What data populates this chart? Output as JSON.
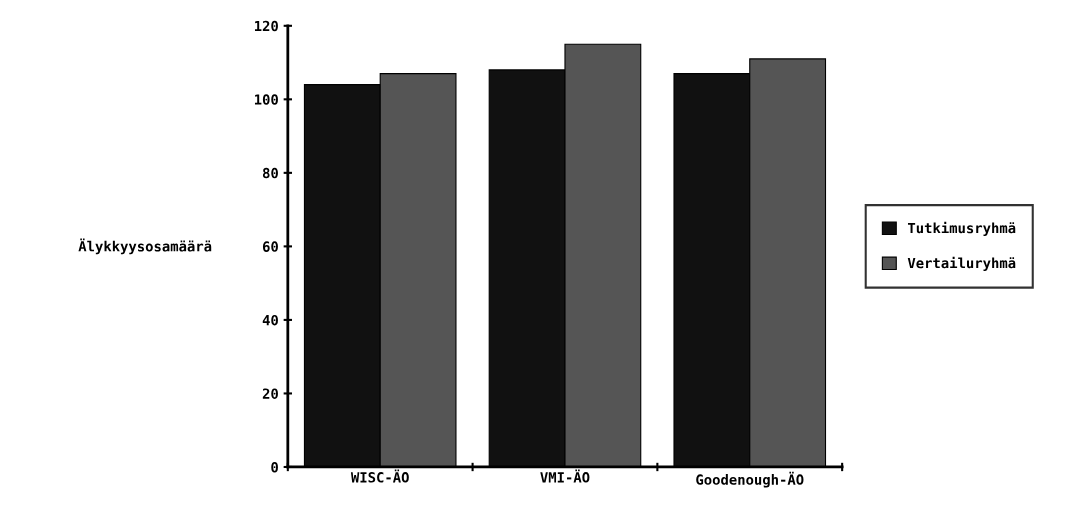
{
  "chart_data": {
    "type": "bar",
    "ylabel": "Älykkyysosamäärä",
    "categories": [
      "WISC-ÄO",
      "VMI-ÄO",
      "Goodenough-ÄO"
    ],
    "series": [
      {
        "name": "Tutkimusryhmä",
        "color": "#111111",
        "values": [
          104,
          108,
          107
        ]
      },
      {
        "name": "Vertailuryhmä",
        "color": "#555555",
        "values": [
          107,
          115,
          111
        ]
      }
    ],
    "ylim": [
      0,
      120
    ],
    "yticks": [
      0,
      20,
      40,
      60,
      80,
      100,
      120
    ],
    "grid": false,
    "legend": "right"
  }
}
